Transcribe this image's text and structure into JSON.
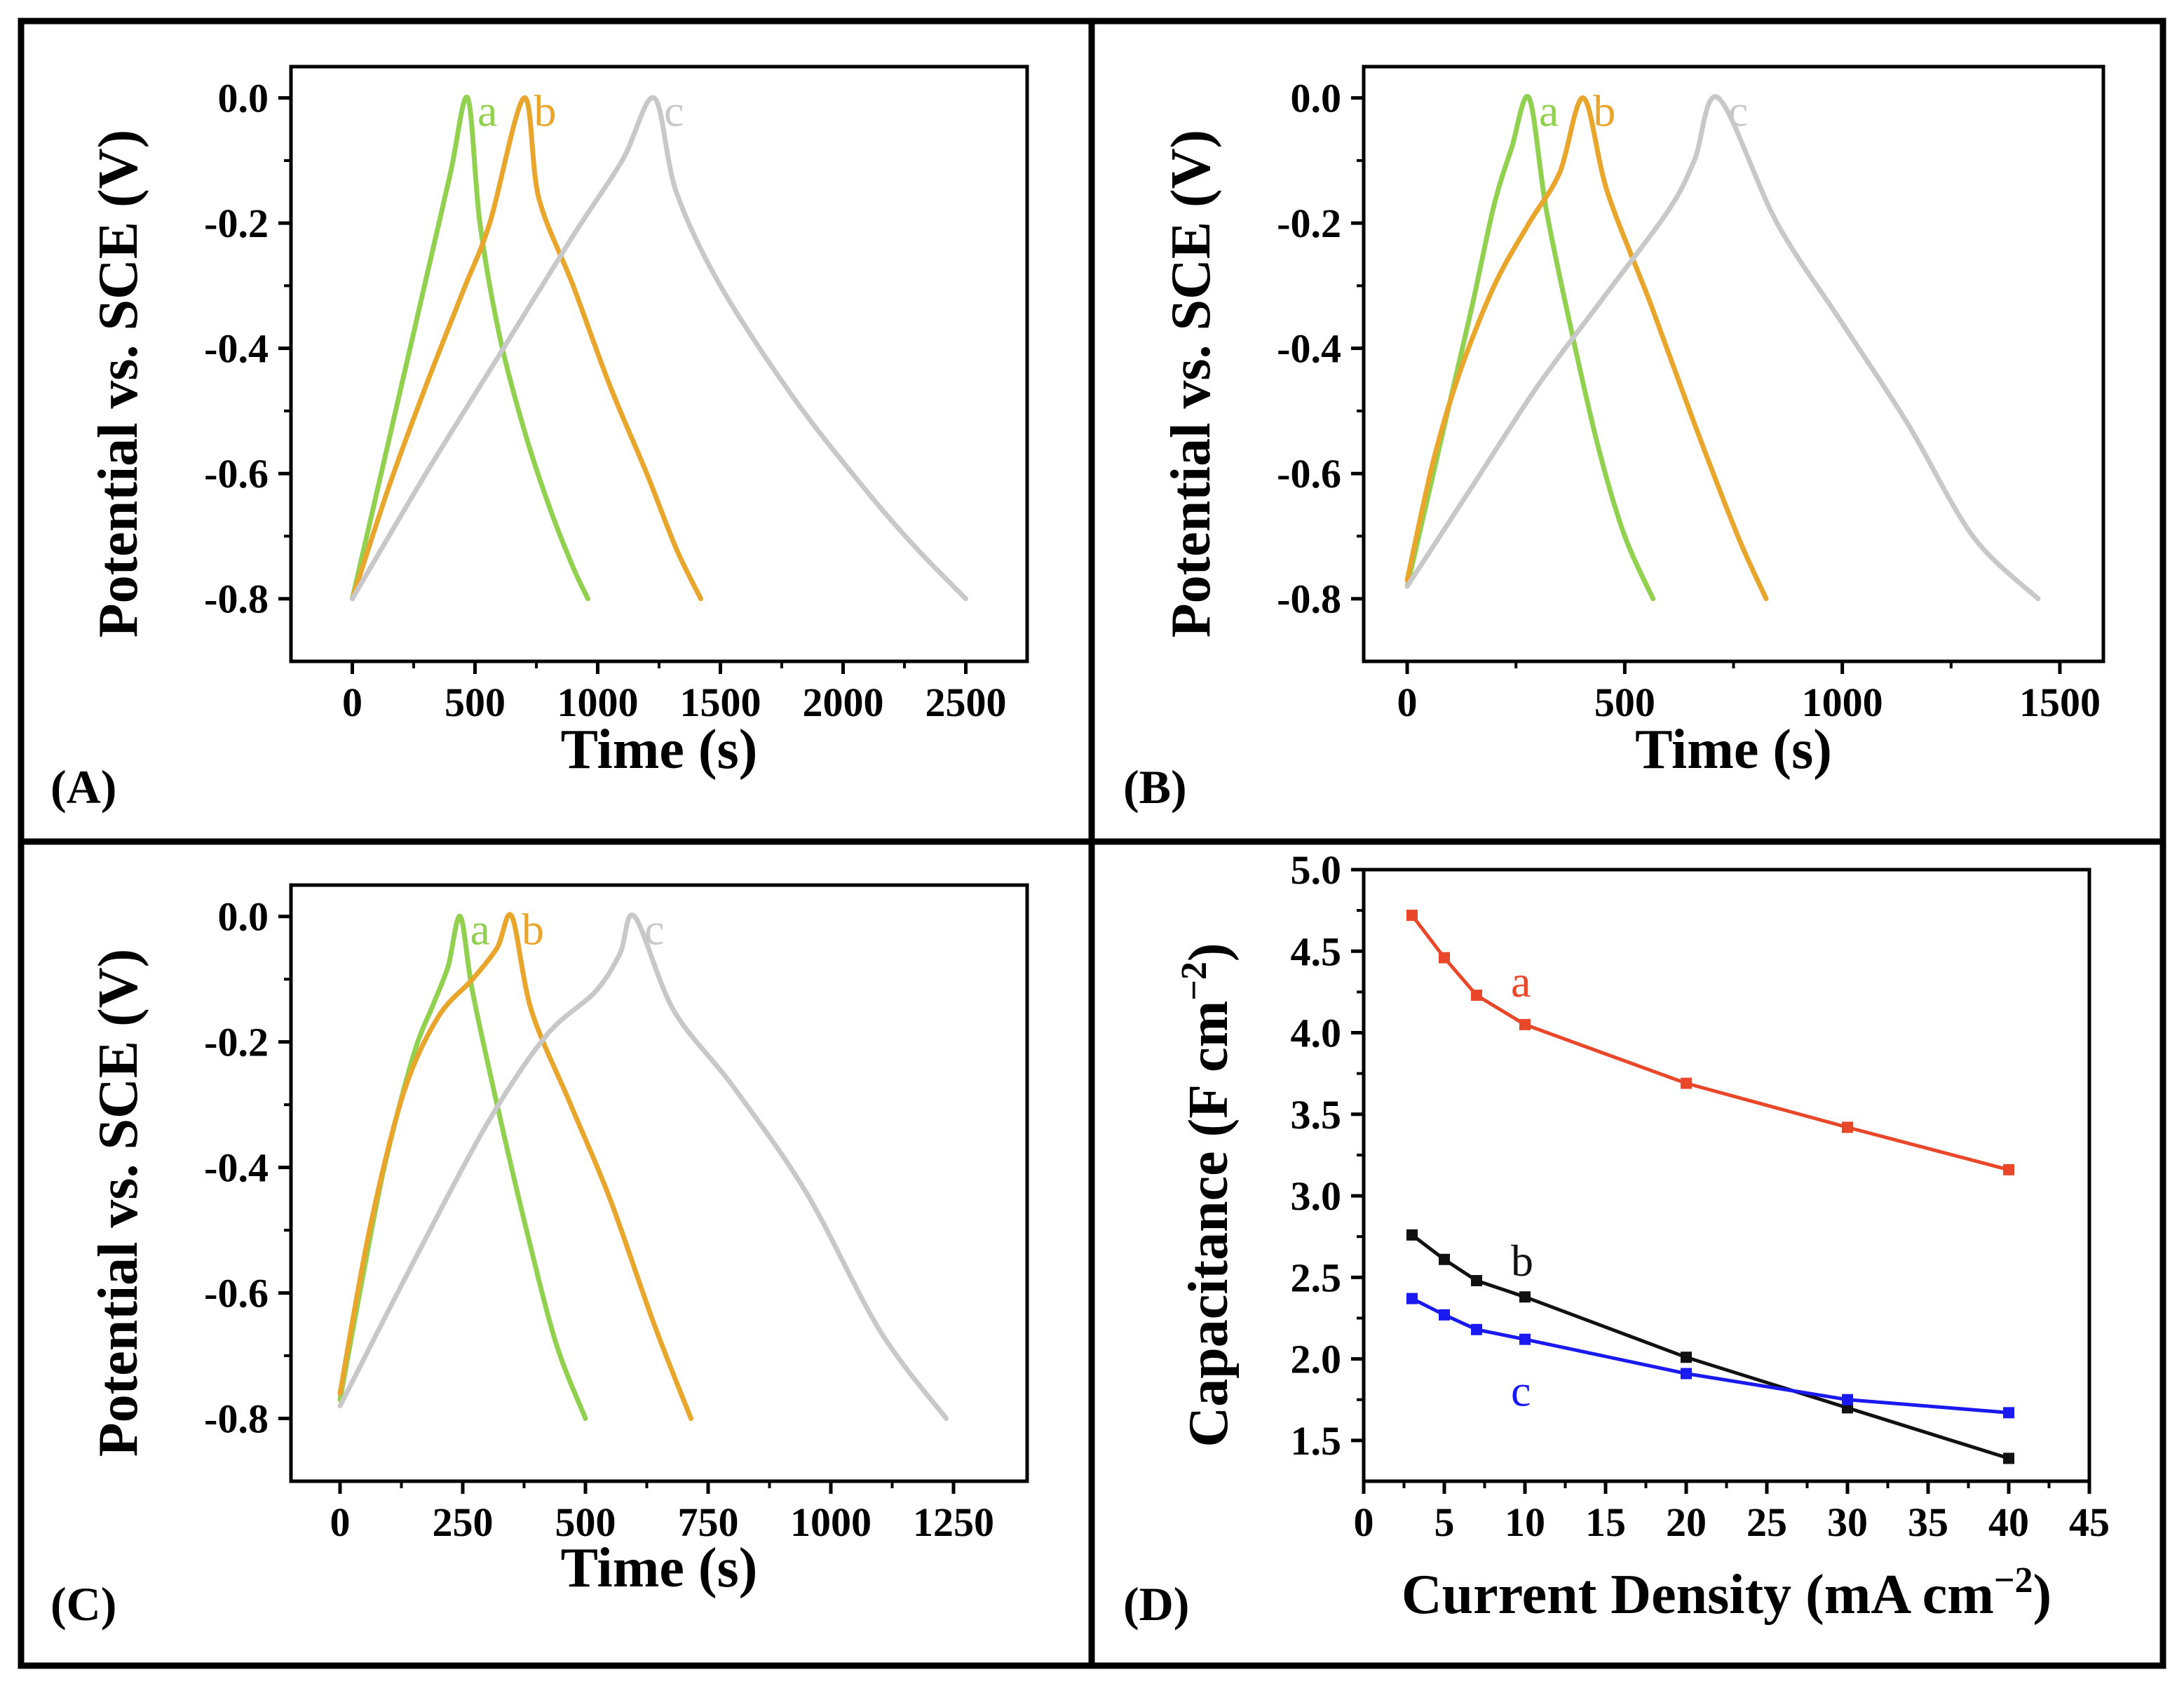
{
  "colors": {
    "a_gcd": "#92d050",
    "b_gcd": "#e9a62c",
    "c_gcd": "#c8c8c8",
    "a_cap": "#e8472a",
    "b_cap": "#111111",
    "c_cap": "#1a1af0"
  },
  "chart_data": [
    {
      "id": "A",
      "panel_label": "(A)",
      "type": "line",
      "xlabel": "Time (s)",
      "ylabel": "Potential vs. SCE (V)",
      "xlim": [
        -250,
        2750
      ],
      "ylim": [
        -0.9,
        0.05
      ],
      "xticks": [
        0,
        500,
        1000,
        1500,
        2000,
        2500
      ],
      "xticklabels": [
        "0",
        "500",
        "1000",
        "1500",
        "2000",
        "2500"
      ],
      "yticks": [
        0.0,
        -0.2,
        -0.4,
        -0.6,
        -0.8
      ],
      "yticklabels": [
        "0.0",
        "-0.2",
        "-0.4",
        "-0.6",
        "-0.8"
      ],
      "series": [
        {
          "name": "a",
          "color_key": "a_gcd",
          "x": [
            0,
            100,
            200,
            300,
            400,
            470,
            520,
            600,
            700,
            800,
            900,
            960
          ],
          "y": [
            -0.8,
            -0.63,
            -0.46,
            -0.29,
            -0.12,
            0.0,
            -0.2,
            -0.38,
            -0.53,
            -0.65,
            -0.75,
            -0.8
          ]
        },
        {
          "name": "b",
          "color_key": "b_gcd",
          "x": [
            0,
            150,
            300,
            450,
            560,
            700,
            760,
            900,
            1050,
            1200,
            1320,
            1420
          ],
          "y": [
            -0.8,
            -0.62,
            -0.46,
            -0.31,
            -0.2,
            0.0,
            -0.16,
            -0.3,
            -0.46,
            -0.6,
            -0.72,
            -0.8
          ]
        },
        {
          "name": "c",
          "color_key": "c_gcd",
          "x": [
            0,
            300,
            600,
            900,
            1100,
            1230,
            1320,
            1500,
            1800,
            2100,
            2300,
            2500
          ],
          "y": [
            -0.8,
            -0.6,
            -0.41,
            -0.22,
            -0.1,
            0.0,
            -0.15,
            -0.3,
            -0.48,
            -0.63,
            -0.72,
            -0.8
          ]
        }
      ]
    },
    {
      "id": "B",
      "panel_label": "(B)",
      "type": "line",
      "xlabel": "Time (s)",
      "ylabel": "Potential vs. SCE (V)",
      "xlim": [
        -100,
        1600
      ],
      "ylim": [
        -0.9,
        0.05
      ],
      "xticks": [
        0,
        500,
        1000,
        1500
      ],
      "xticklabels": [
        "0",
        "500",
        "1000",
        "1500"
      ],
      "yticks": [
        0.0,
        -0.2,
        -0.4,
        -0.6,
        -0.8
      ],
      "yticklabels": [
        "0.0",
        "-0.2",
        "-0.4",
        "-0.6",
        "-0.8"
      ],
      "series": [
        {
          "name": "a",
          "color_key": "a_gcd",
          "x": [
            0,
            50,
            100,
            150,
            200,
            240,
            280,
            320,
            380,
            440,
            500,
            565
          ],
          "y": [
            -0.78,
            -0.63,
            -0.48,
            -0.33,
            -0.17,
            -0.08,
            0.0,
            -0.18,
            -0.38,
            -0.56,
            -0.7,
            -0.8
          ]
        },
        {
          "name": "b",
          "color_key": "b_gcd",
          "x": [
            0,
            60,
            120,
            200,
            280,
            350,
            405,
            460,
            560,
            660,
            760,
            825
          ],
          "y": [
            -0.77,
            -0.58,
            -0.44,
            -0.3,
            -0.2,
            -0.12,
            0.0,
            -0.15,
            -0.33,
            -0.52,
            -0.7,
            -0.8
          ]
        },
        {
          "name": "c",
          "color_key": "c_gcd",
          "x": [
            0,
            150,
            300,
            450,
            600,
            660,
            715,
            850,
            1000,
            1150,
            1300,
            1450
          ],
          "y": [
            -0.78,
            -0.62,
            -0.46,
            -0.32,
            -0.18,
            -0.1,
            0.0,
            -0.2,
            -0.36,
            -0.52,
            -0.7,
            -0.8
          ]
        }
      ]
    },
    {
      "id": "C",
      "panel_label": "(C)",
      "type": "line",
      "xlabel": "Time (s)",
      "ylabel": "Potential vs. SCE (V)",
      "xlim": [
        -100,
        1400
      ],
      "ylim": [
        -0.9,
        0.05
      ],
      "xticks": [
        0,
        250,
        500,
        750,
        1000,
        1250
      ],
      "xticklabels": [
        "0",
        "250",
        "500",
        "750",
        "1000",
        "1250"
      ],
      "yticks": [
        0.0,
        -0.2,
        -0.4,
        -0.6,
        -0.8
      ],
      "yticklabels": [
        "0.0",
        "-0.2",
        "-0.4",
        "-0.6",
        "-0.8"
      ],
      "series": [
        {
          "name": "a",
          "color_key": "a_gcd",
          "x": [
            0,
            40,
            90,
            150,
            190,
            220,
            245,
            270,
            320,
            380,
            440,
            500
          ],
          "y": [
            -0.77,
            -0.6,
            -0.4,
            -0.22,
            -0.14,
            -0.08,
            0.0,
            -0.12,
            -0.3,
            -0.5,
            -0.68,
            -0.8
          ]
        },
        {
          "name": "b",
          "color_key": "b_gcd",
          "x": [
            0,
            60,
            130,
            200,
            270,
            320,
            350,
            390,
            470,
            550,
            640,
            715
          ],
          "y": [
            -0.76,
            -0.5,
            -0.28,
            -0.16,
            -0.1,
            -0.05,
            0.0,
            -0.15,
            -0.3,
            -0.45,
            -0.65,
            -0.8
          ]
        },
        {
          "name": "c",
          "color_key": "c_gcd",
          "x": [
            0,
            150,
            300,
            420,
            520,
            570,
            600,
            680,
            800,
            950,
            1100,
            1235
          ],
          "y": [
            -0.78,
            -0.55,
            -0.33,
            -0.19,
            -0.12,
            -0.06,
            0.0,
            -0.15,
            -0.27,
            -0.44,
            -0.66,
            -0.8
          ]
        }
      ]
    },
    {
      "id": "D",
      "panel_label": "(D)",
      "type": "line",
      "xlabel": "Current Density  (mA cm",
      "xlabel_unit_superscript": "−2",
      "xlabel_close": ")",
      "ylabel": "Capacitance (F cm",
      "ylabel_unit_superscript": "−2",
      "ylabel_close": ")",
      "xlim": [
        0,
        45
      ],
      "ylim": [
        1.25,
        5.0
      ],
      "xticks": [
        0,
        5,
        10,
        15,
        20,
        25,
        30,
        35,
        40,
        45
      ],
      "xticklabels": [
        "0",
        "5",
        "10",
        "15",
        "20",
        "25",
        "30",
        "35",
        "40",
        "45"
      ],
      "yticks": [
        1.5,
        2.0,
        2.5,
        3.0,
        3.5,
        4.0,
        4.5,
        5.0
      ],
      "yticklabels": [
        "1.5",
        "2.0",
        "2.5",
        "3.0",
        "3.5",
        "4.0",
        "4.5",
        "5.0"
      ],
      "series": [
        {
          "name": "a",
          "color_key": "a_cap",
          "x": [
            3,
            5,
            7,
            10,
            20,
            30,
            40
          ],
          "y": [
            4.72,
            4.46,
            4.23,
            4.05,
            3.69,
            3.42,
            3.16
          ]
        },
        {
          "name": "b",
          "color_key": "b_cap",
          "x": [
            3,
            5,
            7,
            10,
            20,
            30,
            40
          ],
          "y": [
            2.76,
            2.61,
            2.48,
            2.38,
            2.01,
            1.7,
            1.39
          ]
        },
        {
          "name": "c",
          "color_key": "c_cap",
          "x": [
            3,
            5,
            7,
            10,
            20,
            30,
            40
          ],
          "y": [
            2.37,
            2.27,
            2.18,
            2.12,
            1.91,
            1.75,
            1.67
          ]
        }
      ]
    }
  ]
}
